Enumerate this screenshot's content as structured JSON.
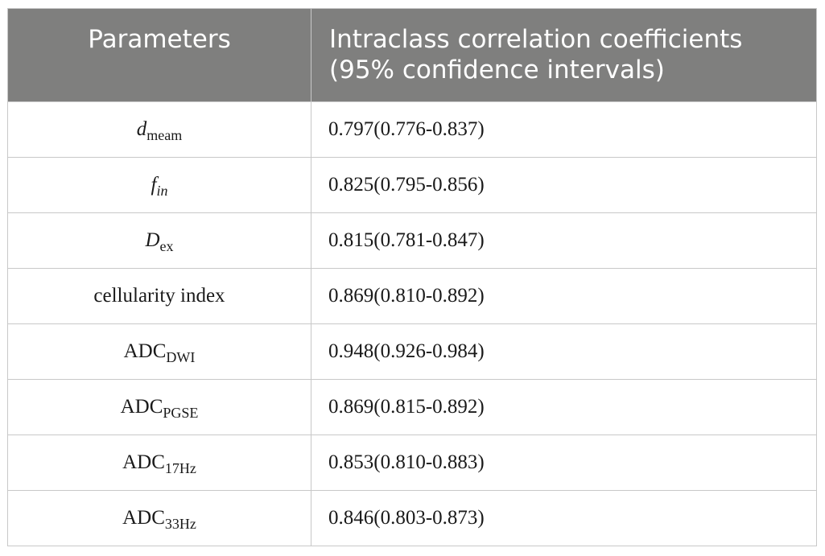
{
  "table": {
    "headers": {
      "parameters": "Parameters",
      "icc_line1": "Intraclass correlation coefficients",
      "icc_line2": "(95% confidence intervals)"
    },
    "rows": [
      {
        "param_main": "d",
        "param_sub": "meam",
        "main_italic": true,
        "sub_italic": false,
        "value": "0.797(0.776-0.837)"
      },
      {
        "param_main": "f",
        "param_sub": "in",
        "main_italic": true,
        "sub_italic": true,
        "value": "0.825(0.795-0.856)"
      },
      {
        "param_main": "D",
        "param_sub": "ex",
        "main_italic": true,
        "sub_italic": false,
        "value": "0.815(0.781-0.847)"
      },
      {
        "param_main": "cellularity index",
        "param_sub": "",
        "main_italic": false,
        "sub_italic": false,
        "value": "0.869(0.810-0.892)"
      },
      {
        "param_main": "ADC",
        "param_sub": "DWI",
        "main_italic": false,
        "sub_italic": false,
        "value": "0.948(0.926-0.984)"
      },
      {
        "param_main": "ADC",
        "param_sub": "PGSE",
        "main_italic": false,
        "sub_italic": false,
        "value": "0.869(0.815-0.892)"
      },
      {
        "param_main": "ADC",
        "param_sub": "17Hz",
        "main_italic": false,
        "sub_italic": false,
        "value": "0.853(0.810-0.883)"
      },
      {
        "param_main": "ADC",
        "param_sub": "33Hz",
        "main_italic": false,
        "sub_italic": false,
        "value": "0.846(0.803-0.873)"
      }
    ]
  }
}
